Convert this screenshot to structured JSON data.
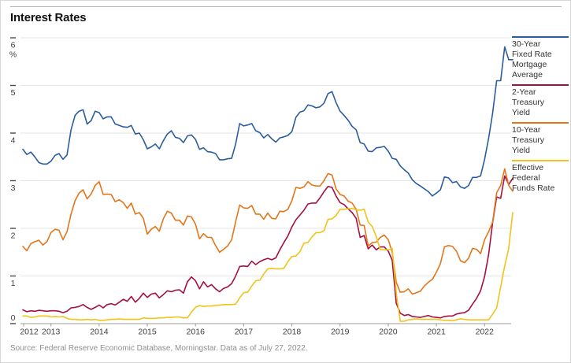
{
  "chart_data": {
    "type": "line",
    "title": "Interest Rates",
    "source_note": "Source: Federal Reserve Economic Database, Morningstar. Data as of July 27, 2022.",
    "xlabel": "",
    "ylabel": "%",
    "y_unit": "%",
    "ylim": [
      0,
      6
    ],
    "y_ticks": [
      6,
      5,
      4,
      3,
      2,
      1,
      0
    ],
    "x_labels": [
      "2012",
      "2013",
      "2014",
      "2015",
      "2016",
      "2017",
      "2018",
      "2019",
      "2020",
      "2021",
      "2022"
    ],
    "x_range": [
      "2012-06",
      "2022-07"
    ],
    "x_step": "monthly",
    "grid": "horizontal",
    "legend_position": "right",
    "series": [
      {
        "id": "30-year-fixed-rate-mortgage-average",
        "name": "30-Year Fixed Rate Mortgage Average",
        "color": "#2b5d9e",
        "values": [
          3.66,
          3.55,
          3.6,
          3.5,
          3.38,
          3.35,
          3.35,
          3.41,
          3.53,
          3.57,
          3.45,
          3.54,
          4.07,
          4.37,
          4.46,
          4.49,
          4.19,
          4.26,
          4.46,
          4.43,
          4.3,
          4.34,
          4.34,
          4.19,
          4.16,
          4.13,
          4.12,
          4.16,
          3.98,
          4.0,
          3.86,
          3.67,
          3.71,
          3.77,
          3.67,
          3.84,
          3.98,
          4.05,
          3.91,
          3.89,
          3.8,
          3.94,
          3.96,
          3.87,
          3.66,
          3.69,
          3.61,
          3.6,
          3.57,
          3.44,
          3.44,
          3.46,
          3.47,
          3.77,
          4.2,
          4.15,
          4.17,
          4.2,
          4.05,
          4.01,
          3.9,
          3.97,
          3.88,
          3.81,
          3.9,
          3.92,
          3.95,
          4.03,
          4.33,
          4.44,
          4.47,
          4.59,
          4.57,
          4.53,
          4.55,
          4.63,
          4.83,
          4.87,
          4.64,
          4.46,
          4.37,
          4.27,
          4.14,
          4.07,
          3.8,
          3.77,
          3.62,
          3.61,
          3.69,
          3.7,
          3.72,
          3.62,
          3.47,
          3.45,
          3.31,
          3.23,
          3.16,
          3.02,
          2.94,
          2.89,
          2.83,
          2.77,
          2.68,
          2.74,
          2.81,
          3.08,
          3.06,
          2.96,
          2.98,
          2.87,
          2.84,
          2.9,
          3.07,
          3.07,
          3.1,
          3.45,
          3.89,
          4.42,
          5.1,
          5.1,
          5.81,
          5.54,
          5.54
        ]
      },
      {
        "id": "2-year-treasury-yield",
        "name": "2-Year Treasury Yield",
        "color": "#a5103e",
        "values": [
          0.29,
          0.25,
          0.27,
          0.26,
          0.28,
          0.27,
          0.26,
          0.27,
          0.27,
          0.26,
          0.23,
          0.26,
          0.33,
          0.34,
          0.36,
          0.4,
          0.34,
          0.3,
          0.34,
          0.39,
          0.33,
          0.4,
          0.42,
          0.39,
          0.45,
          0.51,
          0.47,
          0.57,
          0.45,
          0.53,
          0.64,
          0.55,
          0.62,
          0.64,
          0.54,
          0.61,
          0.69,
          0.67,
          0.7,
          0.71,
          0.64,
          0.88,
          0.98,
          0.9,
          0.73,
          0.88,
          0.77,
          0.82,
          0.73,
          0.67,
          0.74,
          0.77,
          0.84,
          1.0,
          1.2,
          1.21,
          1.2,
          1.31,
          1.24,
          1.3,
          1.34,
          1.37,
          1.34,
          1.38,
          1.55,
          1.7,
          1.84,
          2.03,
          2.18,
          2.28,
          2.38,
          2.51,
          2.53,
          2.53,
          2.64,
          2.77,
          2.88,
          2.86,
          2.68,
          2.54,
          2.5,
          2.41,
          2.33,
          2.21,
          1.81,
          1.85,
          1.57,
          1.65,
          1.55,
          1.61,
          1.61,
          1.52,
          1.33,
          0.43,
          0.22,
          0.17,
          0.19,
          0.15,
          0.14,
          0.13,
          0.15,
          0.17,
          0.14,
          0.13,
          0.12,
          0.15,
          0.16,
          0.16,
          0.2,
          0.22,
          0.23,
          0.28,
          0.41,
          0.53,
          0.69,
          0.99,
          1.45,
          2.12,
          2.66,
          2.63,
          3.1,
          2.92,
          3.05
        ]
      },
      {
        "id": "10-year-treasury-yield",
        "name": "10-Year Treasury Yield",
        "color": "#e2761b",
        "values": [
          1.62,
          1.53,
          1.68,
          1.72,
          1.75,
          1.65,
          1.72,
          1.91,
          1.98,
          1.96,
          1.76,
          1.93,
          2.3,
          2.58,
          2.74,
          2.81,
          2.62,
          2.72,
          2.9,
          2.98,
          2.71,
          2.72,
          2.71,
          2.56,
          2.6,
          2.54,
          2.42,
          2.53,
          2.3,
          2.33,
          2.21,
          1.88,
          1.98,
          2.04,
          1.94,
          2.2,
          2.36,
          2.32,
          2.17,
          2.17,
          2.07,
          2.26,
          2.24,
          2.09,
          1.78,
          1.89,
          1.81,
          1.81,
          1.64,
          1.5,
          1.56,
          1.63,
          1.76,
          2.14,
          2.49,
          2.43,
          2.42,
          2.48,
          2.3,
          2.3,
          2.19,
          2.32,
          2.21,
          2.2,
          2.36,
          2.35,
          2.4,
          2.58,
          2.86,
          2.84,
          2.87,
          2.98,
          2.91,
          2.89,
          2.89,
          3.0,
          3.15,
          3.12,
          2.83,
          2.71,
          2.68,
          2.57,
          2.53,
          2.4,
          2.07,
          2.06,
          1.63,
          1.7,
          1.71,
          1.81,
          1.86,
          1.76,
          1.5,
          0.87,
          0.66,
          0.67,
          0.73,
          0.62,
          0.65,
          0.68,
          0.79,
          0.87,
          0.93,
          1.08,
          1.26,
          1.61,
          1.64,
          1.62,
          1.52,
          1.32,
          1.28,
          1.37,
          1.58,
          1.56,
          1.47,
          1.76,
          1.93,
          2.13,
          2.75,
          2.9,
          3.25,
          2.9,
          2.78
        ]
      },
      {
        "id": "effective-federal-funds-rate",
        "name": "Effective Federal Funds Rate",
        "color": "#f0c41a",
        "values": [
          0.16,
          0.16,
          0.13,
          0.14,
          0.16,
          0.16,
          0.16,
          0.14,
          0.15,
          0.14,
          0.15,
          0.11,
          0.09,
          0.09,
          0.08,
          0.08,
          0.09,
          0.08,
          0.09,
          0.07,
          0.07,
          0.08,
          0.09,
          0.09,
          0.1,
          0.09,
          0.09,
          0.09,
          0.09,
          0.09,
          0.12,
          0.11,
          0.11,
          0.11,
          0.12,
          0.12,
          0.13,
          0.13,
          0.14,
          0.14,
          0.12,
          0.12,
          0.24,
          0.34,
          0.38,
          0.36,
          0.37,
          0.37,
          0.38,
          0.39,
          0.4,
          0.4,
          0.4,
          0.41,
          0.54,
          0.65,
          0.66,
          0.79,
          0.9,
          0.91,
          1.04,
          1.15,
          1.16,
          1.15,
          1.15,
          1.16,
          1.3,
          1.41,
          1.42,
          1.51,
          1.69,
          1.7,
          1.82,
          1.91,
          1.91,
          1.95,
          2.19,
          2.2,
          2.27,
          2.4,
          2.4,
          2.41,
          2.42,
          2.39,
          2.38,
          2.4,
          2.13,
          2.04,
          1.83,
          1.55,
          1.55,
          1.55,
          1.58,
          0.65,
          0.05,
          0.05,
          0.08,
          0.09,
          0.1,
          0.09,
          0.09,
          0.09,
          0.09,
          0.09,
          0.08,
          0.07,
          0.07,
          0.06,
          0.08,
          0.1,
          0.09,
          0.08,
          0.08,
          0.08,
          0.08,
          0.08,
          0.08,
          0.2,
          0.33,
          0.77,
          1.21,
          1.58,
          2.33
        ]
      }
    ]
  }
}
